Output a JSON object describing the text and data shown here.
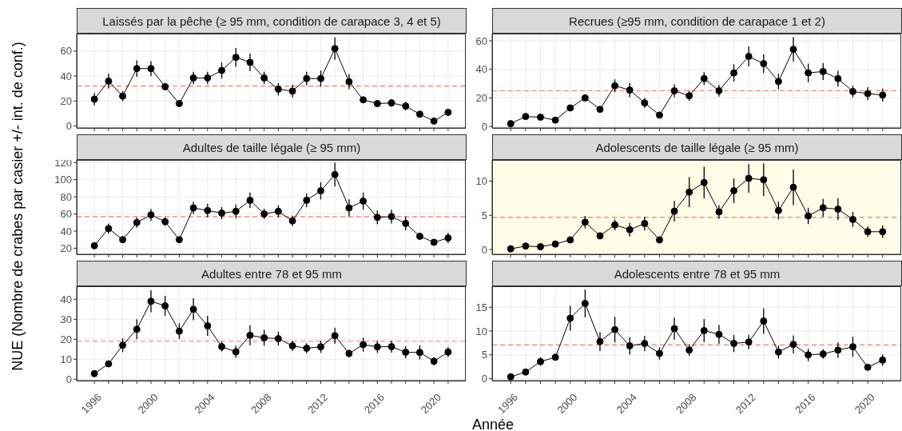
{
  "chart_data": [
    {
      "type": "line",
      "title": "Laissés par la pêche (≥ 95 mm, condition de carapace 3, 4 et 5)",
      "ylabel": "NUE (Nombre de crabes par casier +/- int. de conf.)",
      "x": [
        1996,
        1997,
        1998,
        1999,
        2000,
        2001,
        2002,
        2003,
        2004,
        2005,
        2006,
        2007,
        2008,
        2009,
        2010,
        2011,
        2012,
        2013,
        2014,
        2015,
        2016,
        2017,
        2018,
        2019,
        2020,
        2021
      ],
      "series": [
        {
          "color": "#000000",
          "values": [
            21.5,
            36,
            24,
            46,
            46,
            31.5,
            18,
            38.5,
            38.5,
            44.5,
            55,
            51,
            38.5,
            29.5,
            28,
            38,
            38,
            62,
            35.5,
            21,
            18,
            18.5,
            16,
            9.5,
            4,
            11
          ],
          "errors": [
            5,
            6,
            4,
            6.5,
            6,
            3,
            2,
            5,
            5,
            6.5,
            7.5,
            7,
            5,
            5,
            5,
            5.5,
            6.5,
            9,
            6,
            2.5,
            2,
            3,
            3.5,
            2,
            1.5,
            2
          ]
        }
      ],
      "xlim": [
        1994.75,
        2022.25
      ],
      "xticks": [
        1996,
        {
          "value": 1997,
          "label": null
        },
        {
          "value": 1998,
          "label": null
        },
        {
          "value": 1999,
          "label": null
        },
        2000,
        {
          "value": 2001,
          "label": null
        },
        {
          "value": 2002,
          "label": null
        },
        {
          "value": 2003,
          "label": null
        },
        2004,
        {
          "value": 2005,
          "label": null
        },
        {
          "value": 2006,
          "label": null
        },
        {
          "value": 2007,
          "label": null
        },
        2008,
        {
          "value": 2009,
          "label": null
        },
        {
          "value": 2010,
          "label": null
        },
        {
          "value": 2011,
          "label": null
        },
        2012,
        {
          "value": 2013,
          "label": null
        },
        {
          "value": 2014,
          "label": null
        },
        {
          "value": 2015,
          "label": null
        },
        2016,
        {
          "value": 2017,
          "label": null
        },
        {
          "value": 2018,
          "label": null
        },
        {
          "value": 2019,
          "label": null
        },
        2020,
        {
          "value": 2021,
          "label": null
        }
      ],
      "ylim": [
        -1.5,
        74
      ],
      "yticks": [
        0,
        20,
        40,
        60
      ],
      "tick_labels": "y",
      "grid": true,
      "marker": "circle",
      "line_style": "solid",
      "ref_lines": [
        {
          "axis": "y",
          "value": 32,
          "color": "#f8766d",
          "line_style": "dashed"
        }
      ]
    },
    {
      "type": "line",
      "title": "Recrues (≥95 mm, condition de carapace 1 et 2)",
      "x": [
        1996,
        1997,
        1998,
        1999,
        2000,
        2001,
        2002,
        2003,
        2004,
        2005,
        2006,
        2007,
        2008,
        2009,
        2010,
        2011,
        2012,
        2013,
        2014,
        2015,
        2016,
        2017,
        2018,
        2019,
        2020,
        2021
      ],
      "series": [
        {
          "color": "#000000",
          "values": [
            2,
            7,
            6.5,
            4.5,
            13,
            20,
            12,
            28.5,
            25.5,
            16.5,
            8,
            25,
            21.5,
            33.5,
            25,
            37.5,
            49,
            44,
            31.5,
            54,
            37.5,
            38.5,
            33.5,
            24.5,
            23,
            22
          ],
          "errors": [
            1,
            1,
            1,
            1,
            2,
            2.5,
            1.5,
            4.5,
            5,
            3.5,
            1.5,
            4.5,
            3.5,
            4.5,
            4,
            6,
            7,
            6.5,
            5.5,
            8.5,
            6.5,
            6,
            5.5,
            4,
            4.5,
            4.5
          ]
        }
      ],
      "xlim": [
        1994.75,
        2022.25
      ],
      "xticks": [
        1996,
        {
          "value": 1997,
          "label": null
        },
        {
          "value": 1998,
          "label": null
        },
        {
          "value": 1999,
          "label": null
        },
        2000,
        {
          "value": 2001,
          "label": null
        },
        {
          "value": 2002,
          "label": null
        },
        {
          "value": 2003,
          "label": null
        },
        2004,
        {
          "value": 2005,
          "label": null
        },
        {
          "value": 2006,
          "label": null
        },
        {
          "value": 2007,
          "label": null
        },
        2008,
        {
          "value": 2009,
          "label": null
        },
        {
          "value": 2010,
          "label": null
        },
        {
          "value": 2011,
          "label": null
        },
        2012,
        {
          "value": 2013,
          "label": null
        },
        {
          "value": 2014,
          "label": null
        },
        {
          "value": 2015,
          "label": null
        },
        2016,
        {
          "value": 2017,
          "label": null
        },
        {
          "value": 2018,
          "label": null
        },
        {
          "value": 2019,
          "label": null
        },
        2020,
        {
          "value": 2021,
          "label": null
        }
      ],
      "ylim": [
        -1,
        65
      ],
      "yticks": [
        0,
        20,
        40,
        60
      ],
      "tick_labels": "y",
      "grid": true,
      "marker": "circle",
      "line_style": "solid",
      "ref_lines": [
        {
          "axis": "y",
          "value": 25,
          "color": "#f8766d",
          "line_style": "dashed"
        }
      ]
    },
    {
      "type": "line",
      "title": "Adultes de taille légale (≥ 95 mm)",
      "x": [
        1996,
        1997,
        1998,
        1999,
        2000,
        2001,
        2002,
        2003,
        2004,
        2005,
        2006,
        2007,
        2008,
        2009,
        2010,
        2011,
        2012,
        2013,
        2014,
        2015,
        2016,
        2017,
        2018,
        2019,
        2020,
        2021
      ],
      "series": [
        {
          "color": "#000000",
          "values": [
            23,
            43,
            30,
            50,
            59,
            51,
            30,
            67,
            64,
            61,
            63,
            76,
            60,
            63,
            52,
            76,
            87,
            106,
            67,
            75,
            56,
            57,
            49,
            34,
            27,
            32
          ],
          "errors": [
            4,
            6,
            4,
            6,
            7,
            5,
            2,
            7,
            8,
            7,
            8,
            9,
            6,
            7,
            6,
            8,
            10,
            14,
            10,
            10,
            8,
            8,
            8,
            4,
            3,
            6
          ]
        }
      ],
      "xlim": [
        1994.75,
        2022.25
      ],
      "xticks": [
        1996,
        {
          "value": 1997,
          "label": null
        },
        {
          "value": 1998,
          "label": null
        },
        {
          "value": 1999,
          "label": null
        },
        2000,
        {
          "value": 2001,
          "label": null
        },
        {
          "value": 2002,
          "label": null
        },
        {
          "value": 2003,
          "label": null
        },
        2004,
        {
          "value": 2005,
          "label": null
        },
        {
          "value": 2006,
          "label": null
        },
        {
          "value": 2007,
          "label": null
        },
        2008,
        {
          "value": 2009,
          "label": null
        },
        {
          "value": 2010,
          "label": null
        },
        {
          "value": 2011,
          "label": null
        },
        2012,
        {
          "value": 2013,
          "label": null
        },
        {
          "value": 2014,
          "label": null
        },
        {
          "value": 2015,
          "label": null
        },
        2016,
        {
          "value": 2017,
          "label": null
        },
        {
          "value": 2018,
          "label": null
        },
        {
          "value": 2019,
          "label": null
        },
        2020,
        {
          "value": 2021,
          "label": null
        }
      ],
      "ylim": [
        13,
        123
      ],
      "yticks": [
        20,
        40,
        60,
        80,
        100,
        120
      ],
      "tick_labels": "y",
      "grid": true,
      "marker": "circle",
      "line_style": "solid",
      "ref_lines": [
        {
          "axis": "y",
          "value": 57,
          "color": "#f8766d",
          "line_style": "dashed"
        }
      ]
    },
    {
      "type": "line",
      "title": "Adolescents de taille légale (≥ 95 mm)",
      "x": [
        1996,
        1997,
        1998,
        1999,
        2000,
        2001,
        2002,
        2003,
        2004,
        2005,
        2006,
        2007,
        2008,
        2009,
        2010,
        2011,
        2012,
        2013,
        2014,
        2015,
        2016,
        2017,
        2018,
        2019,
        2020,
        2021
      ],
      "series": [
        {
          "color": "#000000",
          "values": [
            0.1,
            0.5,
            0.4,
            0.8,
            1.4,
            4.0,
            2.0,
            3.6,
            2.9,
            3.8,
            1.4,
            5.6,
            8.4,
            9.8,
            5.5,
            8.6,
            10.4,
            10.2,
            5.7,
            9.1,
            4.9,
            6.1,
            5.9,
            4.4,
            2.6,
            2.6
          ],
          "errors": [
            0.1,
            0.1,
            0.1,
            0.15,
            0.25,
            0.9,
            0.5,
            0.8,
            1.0,
            1.0,
            0.3,
            1.5,
            2.2,
            2.3,
            1.0,
            1.8,
            2.1,
            2.4,
            1.3,
            2.6,
            1.2,
            1.3,
            1.6,
            1.1,
            0.8,
            0.9
          ]
        }
      ],
      "xlim": [
        1994.75,
        2022.25
      ],
      "xticks": [
        1996,
        {
          "value": 1997,
          "label": null
        },
        {
          "value": 1998,
          "label": null
        },
        {
          "value": 1999,
          "label": null
        },
        2000,
        {
          "value": 2001,
          "label": null
        },
        {
          "value": 2002,
          "label": null
        },
        {
          "value": 2003,
          "label": null
        },
        2004,
        {
          "value": 2005,
          "label": null
        },
        {
          "value": 2006,
          "label": null
        },
        {
          "value": 2007,
          "label": null
        },
        2008,
        {
          "value": 2009,
          "label": null
        },
        {
          "value": 2010,
          "label": null
        },
        {
          "value": 2011,
          "label": null
        },
        2012,
        {
          "value": 2013,
          "label": null
        },
        {
          "value": 2014,
          "label": null
        },
        {
          "value": 2015,
          "label": null
        },
        2016,
        {
          "value": 2017,
          "label": null
        },
        {
          "value": 2018,
          "label": null
        },
        {
          "value": 2019,
          "label": null
        },
        2020,
        {
          "value": 2021,
          "label": null
        }
      ],
      "ylim": [
        -0.7,
        13.1
      ],
      "yticks": [
        0,
        5,
        10
      ],
      "tick_labels": "y",
      "grid": true,
      "marker": "circle",
      "line_style": "solid",
      "bands": [
        {
          "axis": "y",
          "from": -0.7,
          "to": 13.1,
          "color": "#fdfde8"
        }
      ],
      "ref_lines": [
        {
          "axis": "y",
          "value": 4.7,
          "color": "#f8766d",
          "line_style": "dashed"
        }
      ]
    },
    {
      "type": "line",
      "title": "Adultes entre 78 et 95 mm",
      "xlabel": "Année",
      "x": [
        1996,
        1997,
        1998,
        1999,
        2000,
        2001,
        2002,
        2003,
        2004,
        2005,
        2006,
        2007,
        2008,
        2009,
        2010,
        2011,
        2012,
        2013,
        2014,
        2015,
        2016,
        2017,
        2018,
        2019,
        2020,
        2021
      ],
      "series": [
        {
          "color": "#000000",
          "values": [
            2.8,
            7.7,
            17,
            25,
            39,
            36.7,
            24,
            35,
            26.7,
            16.3,
            13.7,
            22,
            20.7,
            20.3,
            16.7,
            15.5,
            16.2,
            21.8,
            12.9,
            17.3,
            16.2,
            16.3,
            13.5,
            13.4,
            9,
            13.6
          ],
          "errors": [
            0.5,
            1,
            3.5,
            5,
            5.5,
            5,
            4,
            5.5,
            5,
            2.5,
            3,
            5,
            4,
            3.5,
            2.5,
            2.5,
            3,
            4,
            2,
            3.5,
            3,
            3,
            3,
            3.5,
            2,
            2.5
          ]
        }
      ],
      "xlim": [
        1994.75,
        2022.25
      ],
      "xticks": [
        1996,
        {
          "value": 1997,
          "label": null
        },
        {
          "value": 1998,
          "label": null
        },
        {
          "value": 1999,
          "label": null
        },
        2000,
        {
          "value": 2001,
          "label": null
        },
        {
          "value": 2002,
          "label": null
        },
        {
          "value": 2003,
          "label": null
        },
        2004,
        {
          "value": 2005,
          "label": null
        },
        {
          "value": 2006,
          "label": null
        },
        {
          "value": 2007,
          "label": null
        },
        2008,
        {
          "value": 2009,
          "label": null
        },
        {
          "value": 2010,
          "label": null
        },
        {
          "value": 2011,
          "label": null
        },
        2012,
        {
          "value": 2013,
          "label": null
        },
        {
          "value": 2014,
          "label": null
        },
        {
          "value": 2015,
          "label": null
        },
        2016,
        {
          "value": 2017,
          "label": null
        },
        {
          "value": 2018,
          "label": null
        },
        {
          "value": 2019,
          "label": null
        },
        2020,
        {
          "value": 2021,
          "label": null
        }
      ],
      "ylim": [
        -0.7,
        46.5
      ],
      "yticks": [
        0,
        10,
        20,
        30,
        40
      ],
      "grid": true,
      "marker": "circle",
      "line_style": "solid",
      "ref_lines": [
        {
          "axis": "y",
          "value": 19,
          "color": "#f8766d",
          "line_style": "dashed"
        }
      ]
    },
    {
      "type": "line",
      "title": "Adolescents entre 78 et 95 mm",
      "x": [
        1996,
        1997,
        1998,
        1999,
        2000,
        2001,
        2002,
        2003,
        2004,
        2005,
        2006,
        2007,
        2008,
        2009,
        2010,
        2011,
        2012,
        2013,
        2014,
        2015,
        2016,
        2017,
        2018,
        2019,
        2020,
        2021
      ],
      "series": [
        {
          "color": "#000000",
          "values": [
            0.4,
            1.4,
            3.6,
            4.5,
            12.7,
            15.8,
            7.8,
            10.3,
            6.9,
            7.4,
            5.3,
            10.5,
            6,
            10.1,
            9.3,
            7.4,
            7.7,
            12.1,
            5.6,
            7.2,
            5,
            5.2,
            6,
            6.7,
            2.4,
            3.9
          ],
          "errors": [
            0.2,
            0.3,
            0.9,
            0.6,
            2.6,
            2.9,
            2,
            2.7,
            1.8,
            1.6,
            1.3,
            2.3,
            1.2,
            2.4,
            2,
            1.8,
            1.5,
            2.7,
            1.4,
            1.9,
            1.3,
            1,
            1.6,
            2.1,
            0.5,
            1.2
          ]
        }
      ],
      "xlim": [
        1994.75,
        2022.25
      ],
      "xticks": [
        1996,
        {
          "value": 1997,
          "label": null
        },
        {
          "value": 1998,
          "label": null
        },
        {
          "value": 1999,
          "label": null
        },
        2000,
        {
          "value": 2001,
          "label": null
        },
        {
          "value": 2002,
          "label": null
        },
        {
          "value": 2003,
          "label": null
        },
        2004,
        {
          "value": 2005,
          "label": null
        },
        {
          "value": 2006,
          "label": null
        },
        {
          "value": 2007,
          "label": null
        },
        2008,
        {
          "value": 2009,
          "label": null
        },
        {
          "value": 2010,
          "label": null
        },
        {
          "value": 2011,
          "label": null
        },
        2012,
        {
          "value": 2013,
          "label": null
        },
        {
          "value": 2014,
          "label": null
        },
        {
          "value": 2015,
          "label": null
        },
        2016,
        {
          "value": 2017,
          "label": null
        },
        {
          "value": 2018,
          "label": null
        },
        {
          "value": 2019,
          "label": null
        },
        2020,
        {
          "value": 2021,
          "label": null
        }
      ],
      "ylim": [
        -0.4,
        19.4
      ],
      "yticks": [
        0,
        5,
        10,
        15
      ],
      "grid": true,
      "marker": "circle",
      "line_style": "solid",
      "ref_lines": [
        {
          "axis": "y",
          "value": 7.1,
          "color": "#f8766d",
          "line_style": "dashed"
        }
      ]
    }
  ]
}
